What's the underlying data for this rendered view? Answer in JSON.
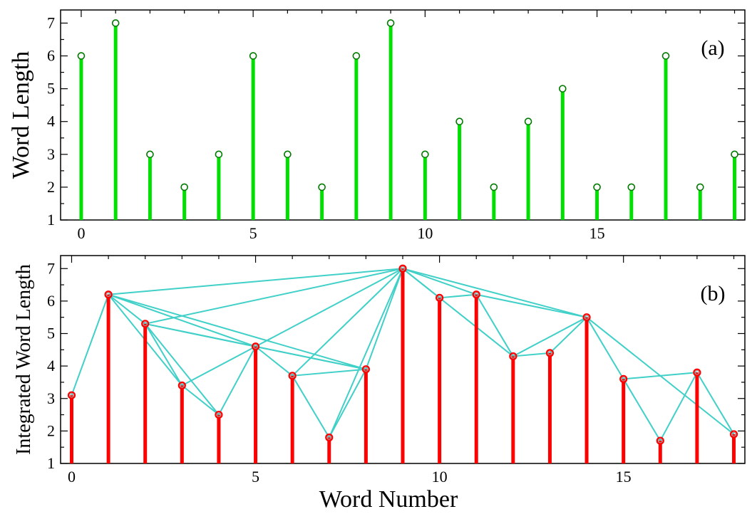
{
  "chart_data": [
    {
      "type": "bar",
      "panel": "(a)",
      "annotation": "(a)",
      "ylabel": "Word Length",
      "xlabel": "",
      "xlim": [
        -0.6,
        19.3
      ],
      "ylim": [
        1,
        7.4
      ],
      "xticks": [
        0,
        5,
        10,
        15
      ],
      "yticks": [
        1,
        2,
        3,
        4,
        5,
        6,
        7
      ],
      "x": [
        0,
        1,
        2,
        3,
        4,
        5,
        6,
        7,
        8,
        9,
        10,
        11,
        12,
        13,
        14,
        15,
        16,
        17,
        18,
        19
      ],
      "values": [
        6,
        7,
        3,
        2,
        3,
        6,
        3,
        2,
        6,
        7,
        3,
        4,
        2,
        4,
        5,
        2,
        2,
        6,
        2,
        3
      ],
      "bar_color": "#00e000",
      "marker_color": "#007a00"
    },
    {
      "type": "bar",
      "panel": "(b)",
      "annotation": "(b)",
      "ylabel": "Integrated Word Length",
      "xlabel": "Word Number",
      "xlim": [
        -0.3,
        18.3
      ],
      "ylim": [
        1,
        7.4
      ],
      "xticks": [
        0,
        5,
        10,
        15
      ],
      "yticks": [
        1,
        2,
        3,
        4,
        5,
        6,
        7
      ],
      "x": [
        0,
        1,
        2,
        3,
        4,
        5,
        6,
        7,
        8,
        9,
        10,
        11,
        12,
        13,
        14,
        15,
        16,
        17,
        18
      ],
      "values": [
        3.1,
        6.2,
        5.3,
        3.4,
        2.5,
        4.6,
        3.7,
        1.8,
        3.9,
        7.0,
        6.1,
        6.2,
        4.3,
        4.4,
        5.5,
        3.6,
        1.7,
        3.8,
        1.9
      ],
      "bar_color": "#ff0000",
      "edge_color": "#40d0c8",
      "edges": [
        [
          0,
          1
        ],
        [
          1,
          2
        ],
        [
          1,
          3
        ],
        [
          1,
          5
        ],
        [
          1,
          8
        ],
        [
          1,
          9
        ],
        [
          2,
          3
        ],
        [
          2,
          4
        ],
        [
          2,
          5
        ],
        [
          2,
          8
        ],
        [
          2,
          9
        ],
        [
          3,
          4
        ],
        [
          3,
          5
        ],
        [
          4,
          5
        ],
        [
          5,
          6
        ],
        [
          5,
          8
        ],
        [
          5,
          9
        ],
        [
          6,
          7
        ],
        [
          6,
          8
        ],
        [
          6,
          9
        ],
        [
          7,
          8
        ],
        [
          7,
          9
        ],
        [
          8,
          9
        ],
        [
          9,
          10
        ],
        [
          9,
          11
        ],
        [
          9,
          12
        ],
        [
          9,
          14
        ],
        [
          10,
          11
        ],
        [
          11,
          12
        ],
        [
          11,
          14
        ],
        [
          12,
          13
        ],
        [
          12,
          14
        ],
        [
          13,
          14
        ],
        [
          14,
          15
        ],
        [
          14,
          18
        ],
        [
          15,
          16
        ],
        [
          15,
          17
        ],
        [
          16,
          17
        ],
        [
          17,
          18
        ]
      ]
    }
  ]
}
